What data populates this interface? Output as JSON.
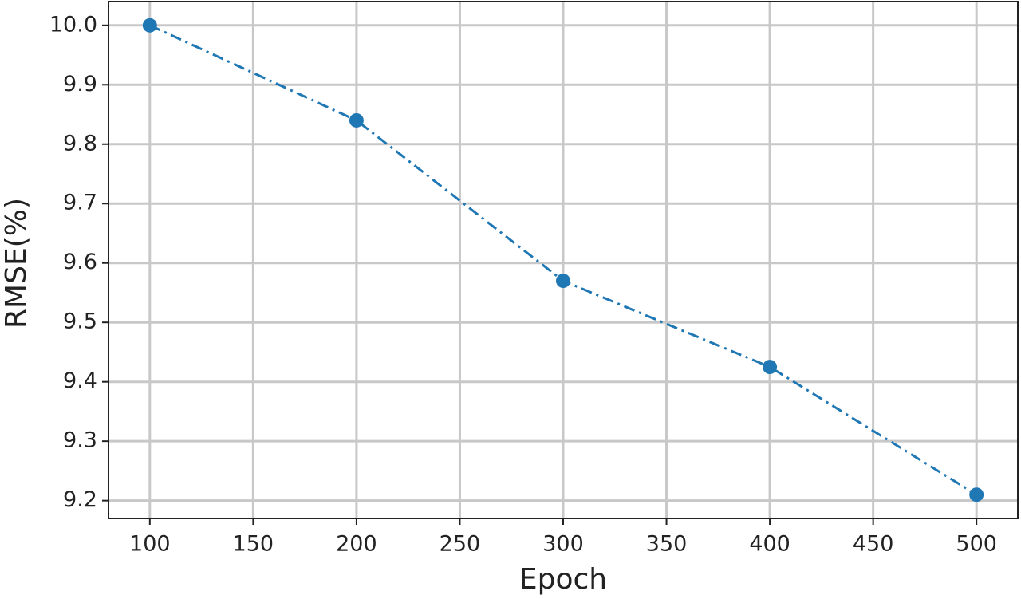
{
  "chart_data": {
    "type": "line",
    "x_label": "Epoch",
    "y_label": "RMSE(%)",
    "x": [
      100,
      200,
      300,
      400,
      500
    ],
    "series": [
      {
        "name": "RMSE",
        "color": "#1f77b4",
        "values": [
          10.0,
          9.84,
          9.57,
          9.425,
          9.21
        ]
      }
    ],
    "xlim": [
      80,
      520
    ],
    "xticks": [
      100,
      150,
      200,
      250,
      300,
      350,
      400,
      450,
      500
    ],
    "ylim": [
      9.17,
      10.04
    ],
    "yticks": [
      {
        "value": 10,
        "label": "10.0"
      },
      9.9,
      9.8,
      9.7,
      9.6,
      9.5,
      9.4,
      9.3,
      9.2
    ],
    "grid": true,
    "line_style": "dashdot",
    "marker": "circle"
  }
}
